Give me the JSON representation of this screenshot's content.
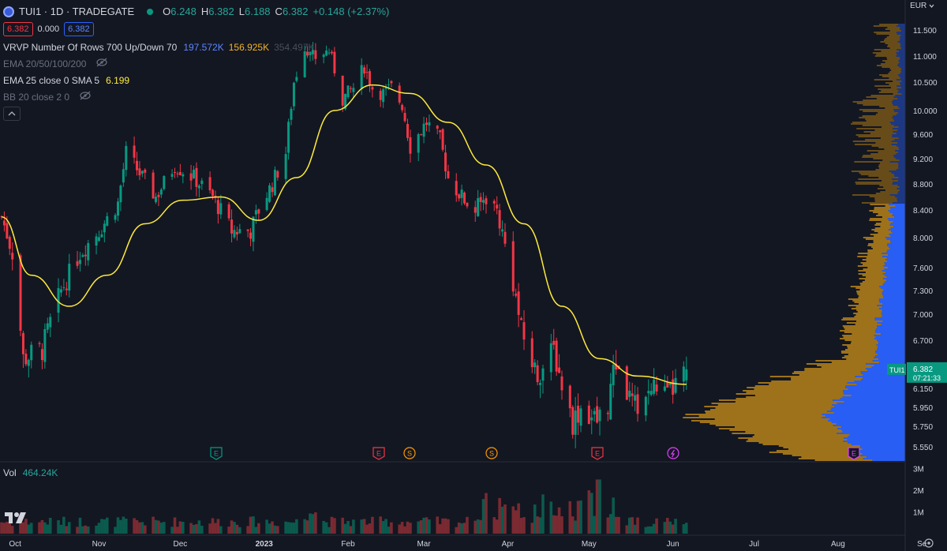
{
  "header": {
    "symbol": "TUI1 · 1D · TRADEGATE",
    "ohlc": [
      {
        "k": "O",
        "v": "6.248"
      },
      {
        "k": "H",
        "v": "6.382"
      },
      {
        "k": "L",
        "v": "6.188"
      },
      {
        "k": "C",
        "v": "6.382"
      }
    ],
    "change": "+0.148 (+2.37%)",
    "sell_price": "6.382",
    "spread": "0.000",
    "buy_price": "6.382"
  },
  "indicators": {
    "vrvp": {
      "name": "VRVP Number Of Rows 700 Up/Down 70",
      "up": "197.572K",
      "down": "156.925K",
      "total": "354.497K"
    },
    "ema_multi": {
      "name": "EMA 20/50/100/200"
    },
    "ema25": {
      "name": "EMA 25 close 0 SMA 5",
      "value": "6.199"
    },
    "bb": {
      "name": "BB 20 close 2 0"
    }
  },
  "volume": {
    "label": "Vol",
    "value": "464.24K"
  },
  "price_axis": {
    "currency": "EUR",
    "labels": [
      "11.500",
      "11.000",
      "10.500",
      "10.000",
      "9.600",
      "9.200",
      "8.800",
      "8.400",
      "8.000",
      "7.600",
      "7.300",
      "7.000",
      "6.700",
      "6.400",
      "6.150",
      "5.950",
      "5.750",
      "5.550"
    ],
    "last_price": "6.382",
    "countdown": "07:21:33",
    "symbol_tag": "TUI1"
  },
  "volume_axis": {
    "labels": [
      "3M",
      "2M",
      "1M"
    ]
  },
  "time_axis": {
    "labels": [
      "Oct",
      "Nov",
      "Dec",
      "2023",
      "Feb",
      "Mar",
      "Apr",
      "May",
      "Jun",
      "Jul",
      "Aug",
      "Se"
    ]
  },
  "events": [
    {
      "type": "E",
      "color": "#089981"
    },
    {
      "type": "E",
      "color": "#f23645"
    },
    {
      "type": "S",
      "color": "#ff9800"
    },
    {
      "type": "S",
      "color": "#ff9800"
    },
    {
      "type": "E",
      "color": "#f23645"
    },
    {
      "type": "lightning",
      "color": "#e040fb"
    },
    {
      "type": "E",
      "color": "#e040fb"
    }
  ],
  "colors": {
    "up": "#089981",
    "down": "#f23645",
    "ema": "#ffeb3b",
    "vp_up": "#2962ff",
    "vp_down": "#a5771b",
    "background": "#131722"
  },
  "chart_data": {
    "type": "candlestick",
    "timeframe": "1D",
    "y_range": [
      5.45,
      11.7
    ],
    "x_range_labels": [
      "Oct",
      "Se"
    ],
    "grid": false,
    "keypoints_close": [
      {
        "date": "2022-09-26",
        "close": 8.3
      },
      {
        "date": "2022-09-30",
        "close": 7.8
      },
      {
        "date": "2022-10-04",
        "close": 6.5
      },
      {
        "date": "2022-10-11",
        "close": 6.6
      },
      {
        "date": "2022-10-18",
        "close": 7.3
      },
      {
        "date": "2022-10-25",
        "close": 7.8
      },
      {
        "date": "2022-11-01",
        "close": 8.1
      },
      {
        "date": "2022-11-08",
        "close": 8.5
      },
      {
        "date": "2022-11-11",
        "close": 9.3
      },
      {
        "date": "2022-11-17",
        "close": 8.9
      },
      {
        "date": "2022-11-22",
        "close": 8.6
      },
      {
        "date": "2022-11-29",
        "close": 9.1
      },
      {
        "date": "2022-12-06",
        "close": 8.9
      },
      {
        "date": "2022-12-13",
        "close": 8.6
      },
      {
        "date": "2022-12-20",
        "close": 8.1
      },
      {
        "date": "2022-12-27",
        "close": 8.1
      },
      {
        "date": "2022-12-30",
        "close": 8.4
      },
      {
        "date": "2023-01-04",
        "close": 8.8
      },
      {
        "date": "2023-01-09",
        "close": 9.3
      },
      {
        "date": "2023-01-12",
        "close": 10.5
      },
      {
        "date": "2023-01-16",
        "close": 11.2
      },
      {
        "date": "2023-01-20",
        "close": 11.0
      },
      {
        "date": "2023-01-25",
        "close": 11.1
      },
      {
        "date": "2023-01-30",
        "close": 10.2
      },
      {
        "date": "2023-02-03",
        "close": 10.4
      },
      {
        "date": "2023-02-07",
        "close": 10.8
      },
      {
        "date": "2023-02-10",
        "close": 10.4
      },
      {
        "date": "2023-02-14",
        "close": 10.3
      },
      {
        "date": "2023-02-17",
        "close": 10.4
      },
      {
        "date": "2023-02-21",
        "close": 10.1
      },
      {
        "date": "2023-02-24",
        "close": 9.4
      },
      {
        "date": "2023-03-02",
        "close": 9.8
      },
      {
        "date": "2023-03-07",
        "close": 9.5
      },
      {
        "date": "2023-03-10",
        "close": 8.9
      },
      {
        "date": "2023-03-15",
        "close": 8.6
      },
      {
        "date": "2023-03-20",
        "close": 8.4
      },
      {
        "date": "2023-03-24",
        "close": 8.6
      },
      {
        "date": "2023-03-28",
        "close": 8.4
      },
      {
        "date": "2023-04-03",
        "close": 7.4
      },
      {
        "date": "2023-04-06",
        "close": 6.8
      },
      {
        "date": "2023-04-12",
        "close": 6.3
      },
      {
        "date": "2023-04-18",
        "close": 6.6
      },
      {
        "date": "2023-04-21",
        "close": 6.2
      },
      {
        "date": "2023-04-25",
        "close": 5.8
      },
      {
        "date": "2023-04-28",
        "close": 5.95
      },
      {
        "date": "2023-05-04",
        "close": 5.8
      },
      {
        "date": "2023-05-08",
        "close": 6.0
      },
      {
        "date": "2023-05-11",
        "close": 6.45
      },
      {
        "date": "2023-05-15",
        "close": 6.1
      },
      {
        "date": "2023-05-18",
        "close": 5.95
      },
      {
        "date": "2023-05-23",
        "close": 6.1
      },
      {
        "date": "2023-05-26",
        "close": 6.2
      },
      {
        "date": "2023-05-30",
        "close": 6.05
      },
      {
        "date": "2023-06-02",
        "close": 6.2
      },
      {
        "date": "2023-06-06",
        "close": 6.382
      }
    ],
    "series": [
      {
        "name": "EMA 25 close 0 SMA 5",
        "points": [
          {
            "date": "2022-09-26",
            "y": 8.3
          },
          {
            "date": "2022-10-07",
            "y": 7.5
          },
          {
            "date": "2022-10-21",
            "y": 7.1
          },
          {
            "date": "2022-11-04",
            "y": 7.5
          },
          {
            "date": "2022-11-18",
            "y": 8.2
          },
          {
            "date": "2022-12-02",
            "y": 8.55
          },
          {
            "date": "2022-12-16",
            "y": 8.6
          },
          {
            "date": "2022-12-30",
            "y": 8.25
          },
          {
            "date": "2023-01-13",
            "y": 8.9
          },
          {
            "date": "2023-01-27",
            "y": 10.0
          },
          {
            "date": "2023-02-10",
            "y": 10.45
          },
          {
            "date": "2023-02-24",
            "y": 10.3
          },
          {
            "date": "2023-03-10",
            "y": 9.8
          },
          {
            "date": "2023-03-24",
            "y": 9.1
          },
          {
            "date": "2023-04-07",
            "y": 8.2
          },
          {
            "date": "2023-04-21",
            "y": 7.1
          },
          {
            "date": "2023-05-05",
            "y": 6.5
          },
          {
            "date": "2023-05-19",
            "y": 6.3
          },
          {
            "date": "2023-06-06",
            "y": 6.199
          }
        ]
      }
    ],
    "volume_range": [
      0,
      3500000
    ]
  }
}
